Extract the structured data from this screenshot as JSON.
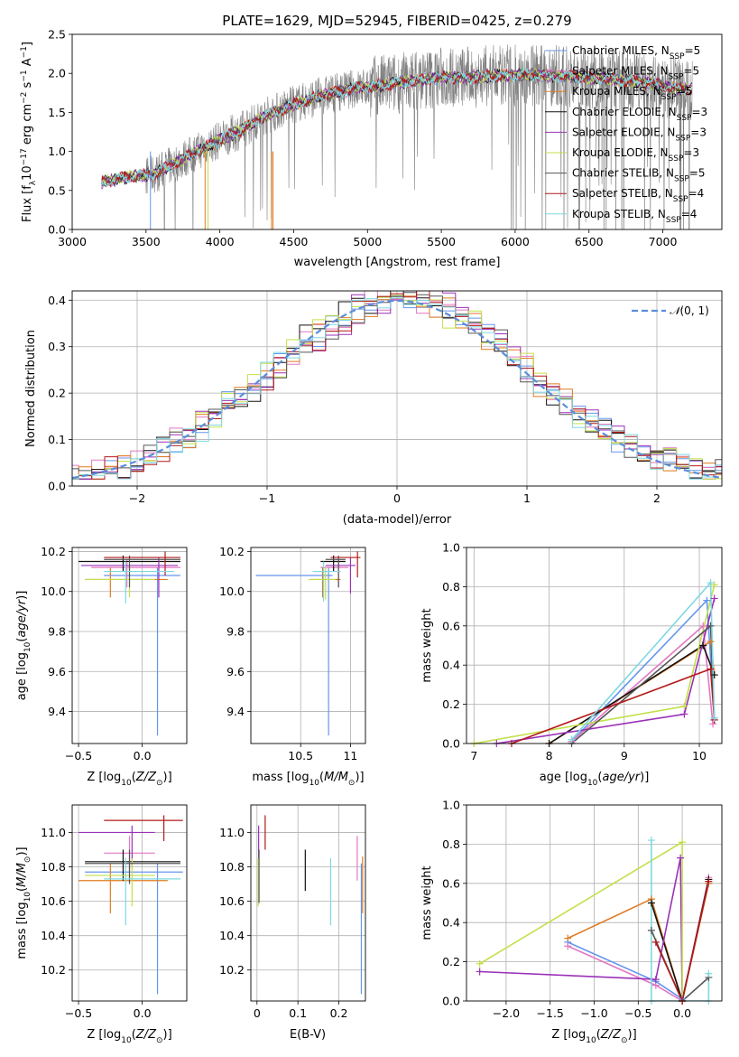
{
  "figure_title": "PLATE=1629, MJD=52945, FIBERID=0425, z=0.279",
  "models": [
    {
      "name": "Chabrier MILES",
      "n_ssp": 5,
      "color": "#6495ed"
    },
    {
      "name": "Salpeter MILES",
      "n_ssp": 5,
      "color": "#e377c2"
    },
    {
      "name": "Kroupa MILES",
      "n_ssp": 5,
      "color": "#e07b22"
    },
    {
      "name": "Chabrier ELODIE",
      "n_ssp": 3,
      "color": "#111111"
    },
    {
      "name": "Salpeter ELODIE",
      "n_ssp": 3,
      "color": "#9b30b8"
    },
    {
      "name": "Kroupa ELODIE",
      "n_ssp": 3,
      "color": "#c2e04a"
    },
    {
      "name": "Chabrier STELIB",
      "n_ssp": 5,
      "color": "#555555"
    },
    {
      "name": "Salpeter STELIB",
      "n_ssp": 4,
      "color": "#b21a1a"
    },
    {
      "name": "Kroupa STELIB",
      "n_ssp": 4,
      "color": "#7fd8e0"
    }
  ],
  "legend_labels": [
    "Chabrier MILES, N_SSP=5",
    "Salpeter MILES, N_SSP=5",
    "Kroupa MILES, N_SSP=5",
    "Chabrier ELODIE, N_SSP=3",
    "Salpeter ELODIE, N_SSP=3",
    "Kroupa ELODIE, N_SSP=3",
    "Chabrier STELIB, N_SSP=5",
    "Salpeter STELIB, N_SSP=4",
    "Kroupa STELIB, N_SSP=4"
  ],
  "chart_data": [
    {
      "id": "spectrum",
      "type": "line",
      "xlabel": "wavelength [Angstrom, rest frame]",
      "ylabel": "Flux [f_λ 10^-17 erg cm^-2 s^-1 A^-1]",
      "xlim": [
        3000,
        7400
      ],
      "ylim": [
        0,
        2.5
      ],
      "xticks": [
        3000,
        3500,
        4000,
        4500,
        5000,
        5500,
        6000,
        6500,
        7000
      ],
      "yticks": [
        0.0,
        0.5,
        1.0,
        1.5,
        2.0,
        2.5
      ],
      "grid": false,
      "legend": "top-right",
      "continuum_x": [
        3200,
        3400,
        3550,
        3700,
        3850,
        4000,
        4150,
        4300,
        4500,
        4700,
        4900,
        5100,
        5300,
        5500,
        5700,
        5900,
        6100,
        6300,
        6500,
        6700,
        6900,
        7100,
        7200
      ],
      "continuum_y": [
        0.6,
        0.68,
        0.7,
        0.85,
        1.0,
        1.15,
        1.28,
        1.45,
        1.6,
        1.72,
        1.8,
        1.85,
        1.9,
        1.95,
        1.95,
        1.97,
        1.98,
        1.97,
        1.95,
        1.92,
        1.88,
        1.8,
        1.8
      ]
    },
    {
      "id": "residuals",
      "type": "line",
      "xlabel": "(data-model)/error",
      "ylabel": "Normed distribution",
      "xlim": [
        -2.5,
        2.5
      ],
      "ylim": [
        0,
        0.42
      ],
      "xticks": [
        -2,
        -1,
        0,
        1,
        2
      ],
      "xtick_labels": [
        "−2",
        "−1",
        "0",
        "1",
        "2"
      ],
      "yticks": [
        0.0,
        0.1,
        0.2,
        0.3,
        0.4
      ],
      "grid": true,
      "legend": "top-right",
      "legend_label": "N(0, 1)",
      "bin_width": 0.1,
      "reference_curve": "standard normal pdf"
    },
    {
      "id": "age_vs_Z",
      "type": "scatter",
      "xlabel": "Z [log10(Z/Z☉)]",
      "ylabel": "age [log10(age/yr)]",
      "xlim": [
        -0.55,
        0.35
      ],
      "ylim": [
        9.24,
        10.22
      ],
      "xticks": [
        -0.5,
        0.0
      ],
      "xtick_labels": [
        "−0.5",
        "0.0"
      ],
      "yticks": [
        9.4,
        9.6,
        9.8,
        10.0,
        10.2
      ],
      "grid": true,
      "points": [
        {
          "x": 0.12,
          "y": 10.08,
          "x_lo": -0.3,
          "x_hi": 0.3,
          "y_lo": 9.28,
          "y_hi": 10.12
        },
        {
          "x": -0.12,
          "y": 10.12,
          "x_lo": -0.4,
          "x_hi": 0.3,
          "y_lo": 10.02,
          "y_hi": 10.16
        },
        {
          "x": -0.25,
          "y": 10.06,
          "x_lo": -0.45,
          "x_hi": 0.2,
          "y_lo": 9.97,
          "y_hi": 10.12
        },
        {
          "x": -0.15,
          "y": 10.15,
          "x_lo": -0.5,
          "x_hi": 0.3,
          "y_lo": 10.1,
          "y_hi": 10.18
        },
        {
          "x": 0.13,
          "y": 10.13,
          "x_lo": -0.48,
          "x_hi": 0.28,
          "y_lo": 9.97,
          "y_hi": 10.17
        },
        {
          "x": -0.1,
          "y": 10.06,
          "x_lo": -0.45,
          "x_hi": 0.1,
          "y_lo": 9.97,
          "y_hi": 10.12
        },
        {
          "x": -0.1,
          "y": 10.16,
          "x_lo": -0.3,
          "x_hi": 0.3,
          "y_lo": 10.02,
          "y_hi": 10.18
        },
        {
          "x": 0.18,
          "y": 10.17,
          "x_lo": -0.3,
          "x_hi": 0.3,
          "y_lo": 10.08,
          "y_hi": 10.2
        },
        {
          "x": -0.13,
          "y": 10.1,
          "x_lo": -0.3,
          "x_hi": 0.25,
          "y_lo": 9.94,
          "y_hi": 10.15
        }
      ]
    },
    {
      "id": "age_vs_mass",
      "type": "scatter",
      "xlabel": "mass [log10(M/M☉)]",
      "ylabel": "",
      "xlim": [
        10.0,
        11.15
      ],
      "ylim": [
        9.24,
        10.22
      ],
      "xticks": [
        10.5,
        11.0
      ],
      "yticks": [
        9.4,
        9.6,
        9.8,
        10.0,
        10.2
      ],
      "grid": true,
      "points": [
        {
          "x": 10.78,
          "y": 10.08,
          "x_lo": 10.05,
          "x_hi": 10.82,
          "y_lo": 9.28,
          "y_hi": 10.12
        },
        {
          "x": 10.88,
          "y": 10.12,
          "x_lo": 10.7,
          "x_hi": 10.98,
          "y_lo": 10.02,
          "y_hi": 10.16
        },
        {
          "x": 10.72,
          "y": 10.06,
          "x_lo": 10.6,
          "x_hi": 10.9,
          "y_lo": 9.97,
          "y_hi": 10.12
        },
        {
          "x": 10.83,
          "y": 10.15,
          "x_lo": 10.7,
          "x_hi": 10.95,
          "y_lo": 10.1,
          "y_hi": 10.18
        },
        {
          "x": 11.0,
          "y": 10.13,
          "x_lo": 10.75,
          "x_hi": 11.05,
          "y_lo": 9.99,
          "y_hi": 10.17
        },
        {
          "x": 10.75,
          "y": 10.06,
          "x_lo": 10.58,
          "x_hi": 10.85,
          "y_lo": 9.96,
          "y_hi": 10.12
        },
        {
          "x": 10.88,
          "y": 10.16,
          "x_lo": 10.75,
          "x_hi": 10.95,
          "y_lo": 10.02,
          "y_hi": 10.18
        },
        {
          "x": 11.07,
          "y": 10.17,
          "x_lo": 10.8,
          "x_hi": 11.1,
          "y_lo": 10.07,
          "y_hi": 10.2
        },
        {
          "x": 10.73,
          "y": 10.1,
          "x_lo": 10.62,
          "x_hi": 10.9,
          "y_lo": 9.95,
          "y_hi": 10.15
        }
      ]
    },
    {
      "id": "weight_vs_age",
      "type": "line",
      "xlabel": "age [log10(age/yr)]",
      "ylabel": "mass weight",
      "xlim": [
        6.9,
        10.3
      ],
      "ylim": [
        0,
        1.0
      ],
      "xticks": [
        7,
        8,
        9,
        10
      ],
      "yticks": [
        0.0,
        0.2,
        0.4,
        0.6,
        0.8,
        1.0
      ],
      "grid": true,
      "series": [
        {
          "x": [
            8.3,
            10.1,
            10.2
          ],
          "y": [
            0.01,
            0.73,
            0.13
          ]
        },
        {
          "x": [
            8.3,
            10.05,
            10.18
          ],
          "y": [
            0.01,
            0.6,
            0.1
          ]
        },
        {
          "x": [
            8.0,
            10.15,
            10.2
          ],
          "y": [
            0.0,
            0.52,
            0.35
          ]
        },
        {
          "x": [
            8.0,
            10.05,
            10.2
          ],
          "y": [
            0.0,
            0.5,
            0.35
          ]
        },
        {
          "x": [
            7.3,
            9.8,
            10.2
          ],
          "y": [
            0.0,
            0.15,
            0.74
          ]
        },
        {
          "x": [
            7.0,
            9.8,
            10.2
          ],
          "y": [
            0.0,
            0.19,
            0.81
          ]
        },
        {
          "x": [
            8.3,
            10.15,
            10.2
          ],
          "y": [
            0.0,
            0.6,
            0.12
          ]
        },
        {
          "x": [
            7.5,
            10.15,
            10.2
          ],
          "y": [
            0.0,
            0.38,
            0.12
          ]
        },
        {
          "x": [
            8.3,
            10.15,
            10.2
          ],
          "y": [
            0.02,
            0.82,
            0.13
          ]
        }
      ]
    },
    {
      "id": "mass_vs_Z",
      "type": "scatter",
      "xlabel": "Z [log10(Z/Z☉)]",
      "ylabel": "mass [log10(M/M☉)]",
      "xlim": [
        -0.55,
        0.35
      ],
      "ylim": [
        10.02,
        11.16
      ],
      "xticks": [
        -0.5,
        0.0
      ],
      "xtick_labels": [
        "−0.5",
        "0.0"
      ],
      "yticks": [
        10.2,
        10.4,
        10.6,
        10.8,
        11.0
      ],
      "grid": true,
      "points": [
        {
          "x": 0.12,
          "y": 10.77,
          "x_lo": -0.45,
          "x_hi": 0.32,
          "y_lo": 10.06,
          "y_hi": 10.82
        },
        {
          "x": -0.1,
          "y": 10.88,
          "x_lo": -0.3,
          "x_hi": 0.1,
          "y_lo": 10.72,
          "y_hi": 10.98
        },
        {
          "x": -0.25,
          "y": 10.72,
          "x_lo": -0.5,
          "x_hi": 0.2,
          "y_lo": 10.53,
          "y_hi": 10.82
        },
        {
          "x": -0.15,
          "y": 10.83,
          "x_lo": -0.45,
          "x_hi": 0.3,
          "y_lo": 10.72,
          "y_hi": 10.9
        },
        {
          "x": -0.08,
          "y": 11.0,
          "x_lo": -0.5,
          "x_hi": 0.1,
          "y_lo": 10.8,
          "y_hi": 11.04
        },
        {
          "x": -0.08,
          "y": 10.75,
          "x_lo": -0.45,
          "x_hi": 0.1,
          "y_lo": 10.57,
          "y_hi": 10.85
        },
        {
          "x": -0.1,
          "y": 10.82,
          "x_lo": -0.45,
          "x_hi": 0.3,
          "y_lo": 10.7,
          "y_hi": 10.9
        },
        {
          "x": 0.17,
          "y": 11.07,
          "x_lo": -0.3,
          "x_hi": 0.32,
          "y_lo": 10.95,
          "y_hi": 11.1
        },
        {
          "x": -0.13,
          "y": 10.73,
          "x_lo": -0.3,
          "x_hi": 0.3,
          "y_lo": 10.46,
          "y_hi": 10.85
        }
      ]
    },
    {
      "id": "mass_vs_EBV",
      "type": "scatter",
      "xlabel": "E(B-V)",
      "ylabel": "",
      "xlim": [
        -0.015,
        0.265
      ],
      "ylim": [
        10.02,
        11.16
      ],
      "xticks": [
        0.0,
        0.1,
        0.2
      ],
      "yticks": [
        10.2,
        10.4,
        10.6,
        10.8,
        11.0
      ],
      "grid": true,
      "points": [
        {
          "x": 0.255,
          "y": 10.77,
          "y_lo": 10.06,
          "y_hi": 10.82
        },
        {
          "x": 0.245,
          "y": 10.88,
          "y_lo": 10.72,
          "y_hi": 10.98
        },
        {
          "x": 0.258,
          "y": 10.72,
          "y_lo": 10.53,
          "y_hi": 10.86
        },
        {
          "x": 0.118,
          "y": 10.83,
          "y_lo": 10.66,
          "y_hi": 10.9
        },
        {
          "x": 0.004,
          "y": 11.0,
          "y_lo": 10.8,
          "y_hi": 11.04
        },
        {
          "x": 0.003,
          "y": 10.75,
          "y_lo": 10.57,
          "y_hi": 10.85
        },
        {
          "x": 0.005,
          "y": 10.82,
          "y_lo": 10.59,
          "y_hi": 10.9
        },
        {
          "x": 0.02,
          "y": 11.07,
          "y_lo": 10.9,
          "y_hi": 11.1
        },
        {
          "x": 0.18,
          "y": 10.73,
          "y_lo": 10.46,
          "y_hi": 10.85
        }
      ]
    },
    {
      "id": "weight_vs_Z",
      "type": "line",
      "xlabel": "Z [log10(Z/Z☉)]",
      "ylabel": "mass weight",
      "xlim": [
        -2.45,
        0.45
      ],
      "ylim": [
        0,
        1.0
      ],
      "xticks": [
        -2.0,
        -1.5,
        -1.0,
        -0.5,
        0.0
      ],
      "xtick_labels": [
        "−2.0",
        "−1.5",
        "−1.0",
        "−0.5",
        "0.0"
      ],
      "yticks": [
        0.0,
        0.2,
        0.4,
        0.6,
        0.8,
        1.0
      ],
      "grid": true,
      "series": [
        {
          "x": [
            -1.3,
            -0.3,
            0.0,
            0.3
          ],
          "y": [
            0.3,
            0.1,
            0.01,
            0.6
          ]
        },
        {
          "x": [
            -1.3,
            -0.3,
            0.0,
            0.3
          ],
          "y": [
            0.28,
            0.08,
            0.0,
            0.63
          ]
        },
        {
          "x": [
            -1.3,
            -0.35,
            0.0,
            0.3
          ],
          "y": [
            0.32,
            0.52,
            0.0,
            0.6
          ]
        },
        {
          "x": [
            -0.35,
            0.0,
            0.3
          ],
          "y": [
            0.5,
            0.0,
            0.62
          ]
        },
        {
          "x": [
            -2.3,
            -0.3,
            -0.02,
            0.0
          ],
          "y": [
            0.15,
            0.11,
            0.73,
            0.0
          ]
        },
        {
          "x": [
            -2.3,
            0.0,
            0.0
          ],
          "y": [
            0.19,
            0.81,
            0.0
          ]
        },
        {
          "x": [
            -0.35,
            0.0,
            0.3
          ],
          "y": [
            0.36,
            0.0,
            0.12
          ]
        },
        {
          "x": [
            -0.3,
            0.0,
            0.3
          ],
          "y": [
            0.3,
            0.0,
            0.61
          ]
        },
        {
          "x": [
            -0.35,
            -0.35,
            0.3,
            0.3
          ],
          "y": [
            0.82,
            0.0,
            0.0,
            0.14
          ]
        }
      ]
    }
  ]
}
